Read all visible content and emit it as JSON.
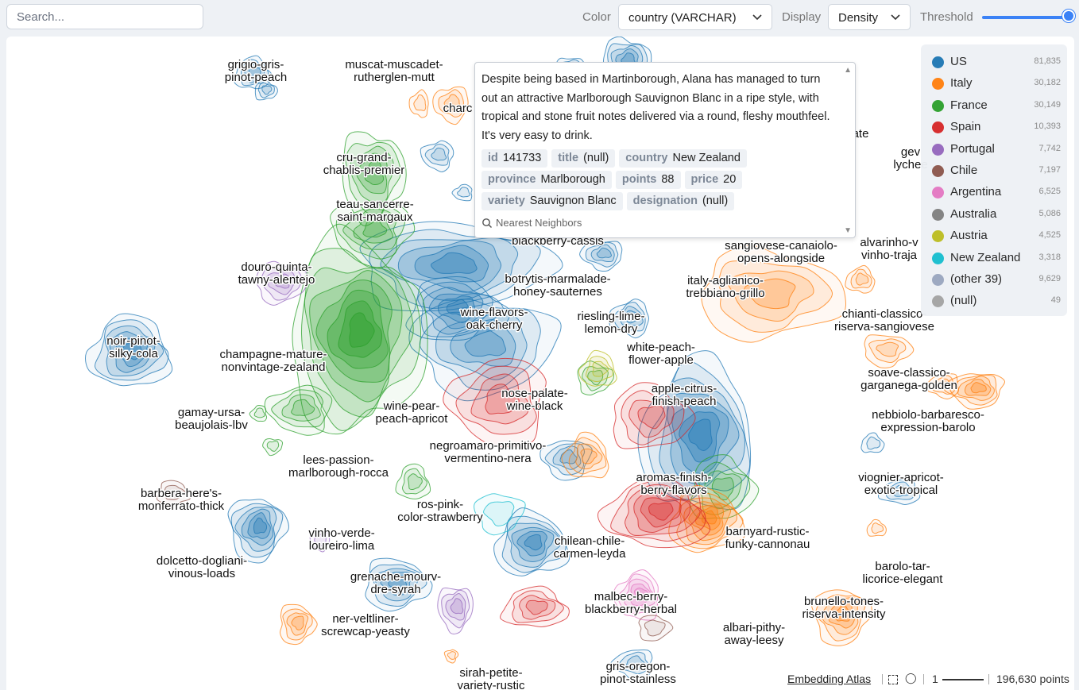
{
  "toolbar": {
    "search_placeholder": "Search...",
    "color_label": "Color",
    "color_value": "country (VARCHAR)",
    "display_label": "Display",
    "display_value": "Density",
    "threshold_label": "Threshold",
    "threshold_level": 1.0
  },
  "tooltip": {
    "description": "Despite being based in Martinborough, Alana has managed to turn out an attractive Marlborough Sauvignon Blanc in a ripe style, with tropical and stone fruit notes delivered via a round, fleshy mouthfeel. It's very easy to drink.",
    "fields": [
      {
        "key": "id",
        "value": "141733"
      },
      {
        "key": "title",
        "value": "(null)"
      },
      {
        "key": "country",
        "value": "New Zealand"
      },
      {
        "key": "province",
        "value": "Marlborough"
      },
      {
        "key": "points",
        "value": "88"
      },
      {
        "key": "price",
        "value": "20"
      },
      {
        "key": "variety",
        "value": "Sauvignon Blanc"
      },
      {
        "key": "designation",
        "value": "(null)"
      }
    ],
    "nearest_neighbors": "Nearest Neighbors"
  },
  "legend": [
    {
      "name": "US",
      "count": "81,835",
      "color": "#1f77b4"
    },
    {
      "name": "Italy",
      "count": "30,182",
      "color": "#ff7f0e"
    },
    {
      "name": "France",
      "count": "30,149",
      "color": "#2ca02c"
    },
    {
      "name": "Spain",
      "count": "10,393",
      "color": "#d62728"
    },
    {
      "name": "Portugal",
      "count": "7,742",
      "color": "#9467bd"
    },
    {
      "name": "Chile",
      "count": "7,197",
      "color": "#8c564b"
    },
    {
      "name": "Argentina",
      "count": "6,525",
      "color": "#e377c2"
    },
    {
      "name": "Australia",
      "count": "5,086",
      "color": "#7f7f7f"
    },
    {
      "name": "Austria",
      "count": "4,525",
      "color": "#bcbd22"
    },
    {
      "name": "New Zealand",
      "count": "3,318",
      "color": "#17becf"
    },
    {
      "name": "(other 39)",
      "count": "9,629",
      "color": "#9aa6bf"
    },
    {
      "name": "(null)",
      "count": "49",
      "color": "#a3a3a3"
    }
  ],
  "cluster_labels": [
    {
      "text": "grigio-gris- pinot-peach"
    },
    {
      "text": "muscat-muscadet- rutherglen-mutt"
    },
    {
      "text": "charc"
    },
    {
      "text": "cru-grand- chablis-premier"
    },
    {
      "text": "teau-sancerre- saint-margaux"
    },
    {
      "text": "douro-quinta- tawny-alentejo"
    },
    {
      "text": "noir-pinot- silky-cola"
    },
    {
      "text": "champagne-mature- nonvintage-zealand"
    },
    {
      "text": "gamay-ursa- beaujolais-lbv"
    },
    {
      "text": "lees-passion- marlborough-rocca"
    },
    {
      "text": "barbera-here's- monferrato-thick"
    },
    {
      "text": "vinho-verde- loureiro-lima"
    },
    {
      "text": "dolcetto-dogliani- vinous-loads"
    },
    {
      "text": "grenache-mourv- dre-syrah"
    },
    {
      "text": "ner-veltliner- screwcap-yeasty"
    },
    {
      "text": "sirah-petite- variety-rustic"
    },
    {
      "text": "blackberry-cassis"
    },
    {
      "text": "botrytis-marmalade- honey-sauternes"
    },
    {
      "text": "wine-flavors- oak-cherry"
    },
    {
      "text": "riesling-lime- lemon-dry"
    },
    {
      "text": "white-peach- flower-apple"
    },
    {
      "text": "nose-palate- wine-black"
    },
    {
      "text": "apple-citrus- finish-peach"
    },
    {
      "text": "wine-pear- peach-apricot"
    },
    {
      "text": "negroamaro-primitivo- vermentino-nera"
    },
    {
      "text": "aromas-finish- berry-flavors"
    },
    {
      "text": "ros-pink- color-strawberry"
    },
    {
      "text": "chilean-chile- carmen-leyda"
    },
    {
      "text": "barnyard-rustic- funky-cannonau"
    },
    {
      "text": "malbec-berry- blackberry-herbal"
    },
    {
      "text": "albari-pithy- away-leesy"
    },
    {
      "text": "gris-oregon- pinot-stainless"
    },
    {
      "text": "sangiovese-canaiolo- opens-alongside"
    },
    {
      "text": "italy-aglianico- trebbiano-grillo"
    },
    {
      "text": "alvarinho-v vinho-traja"
    },
    {
      "text": "ate"
    },
    {
      "text": "gev lychee"
    },
    {
      "text": "chianti-classico- riserva-sangiovese"
    },
    {
      "text": "soave-classico- garganega-golden"
    },
    {
      "text": "nebbiolo-barbaresco- expression-barolo"
    },
    {
      "text": "viognier-apricot- exotic-tropical"
    },
    {
      "text": "barolo-tar- licorice-elegant"
    },
    {
      "text": "brunello-tones- riserva-intensity"
    }
  ],
  "footer": {
    "brand": "Embedding Atlas",
    "scale_value": "1",
    "point_count": "196,630 points"
  }
}
